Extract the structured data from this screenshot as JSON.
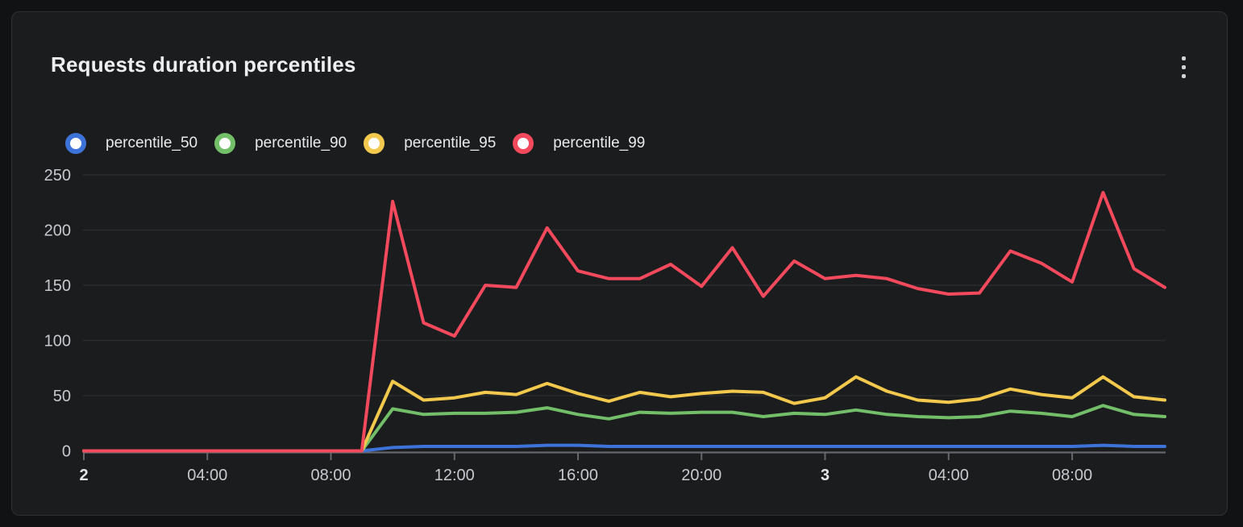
{
  "panel": {
    "title": "Requests duration percentiles",
    "menu_icon": "kebab-menu-icon"
  },
  "chart_data": {
    "type": "line",
    "title": "Requests duration percentiles",
    "xlabel": "",
    "ylabel": "",
    "x_unit": "hours since day 2 00:00",
    "x": [
      0,
      1,
      2,
      3,
      4,
      5,
      6,
      7,
      8,
      9,
      10,
      11,
      12,
      13,
      14,
      15,
      16,
      17,
      18,
      19,
      20,
      21,
      22,
      23,
      24,
      25,
      26,
      27,
      28,
      29,
      30,
      31,
      32,
      33,
      34,
      35
    ],
    "series": [
      {
        "name": "percentile_50",
        "color": "#3D73D9",
        "values": [
          0,
          0,
          0,
          0,
          0,
          0,
          0,
          0,
          0,
          0,
          3,
          4,
          4,
          4,
          4,
          5,
          5,
          4,
          4,
          4,
          4,
          4,
          4,
          4,
          4,
          4,
          4,
          4,
          4,
          4,
          4,
          4,
          4,
          5,
          4,
          4
        ]
      },
      {
        "name": "percentile_90",
        "color": "#73BF69",
        "values": [
          0,
          0,
          0,
          0,
          0,
          0,
          0,
          0,
          0,
          0,
          38,
          33,
          34,
          34,
          35,
          39,
          33,
          29,
          35,
          34,
          35,
          35,
          31,
          34,
          33,
          37,
          33,
          31,
          30,
          31,
          36,
          34,
          31,
          41,
          33,
          31
        ]
      },
      {
        "name": "percentile_95",
        "color": "#F2C94C",
        "values": [
          0,
          0,
          0,
          0,
          0,
          0,
          0,
          0,
          0,
          0,
          63,
          46,
          48,
          53,
          51,
          61,
          52,
          45,
          53,
          49,
          52,
          54,
          53,
          43,
          48,
          67,
          54,
          46,
          44,
          47,
          56,
          51,
          48,
          67,
          49,
          46
        ]
      },
      {
        "name": "percentile_99",
        "color": "#F2495C",
        "values": [
          0,
          0,
          0,
          0,
          0,
          0,
          0,
          0,
          0,
          0,
          226,
          116,
          104,
          150,
          148,
          202,
          163,
          156,
          156,
          169,
          149,
          184,
          140,
          172,
          156,
          159,
          156,
          147,
          142,
          143,
          181,
          170,
          153,
          234,
          165,
          148
        ]
      }
    ],
    "ylim": [
      0,
      250
    ],
    "yticks": [
      0,
      50,
      100,
      150,
      200,
      250
    ],
    "xticks": [
      {
        "hour": 0,
        "label": "2",
        "bold": true
      },
      {
        "hour": 4,
        "label": "04:00",
        "bold": false
      },
      {
        "hour": 8,
        "label": "08:00",
        "bold": false
      },
      {
        "hour": 12,
        "label": "12:00",
        "bold": false
      },
      {
        "hour": 16,
        "label": "16:00",
        "bold": false
      },
      {
        "hour": 20,
        "label": "20:00",
        "bold": false
      },
      {
        "hour": 24,
        "label": "3",
        "bold": true
      },
      {
        "hour": 28,
        "label": "04:00",
        "bold": false
      },
      {
        "hour": 32,
        "label": "08:00",
        "bold": false
      }
    ],
    "grid": "horizontal",
    "legend_position": "top-left"
  }
}
